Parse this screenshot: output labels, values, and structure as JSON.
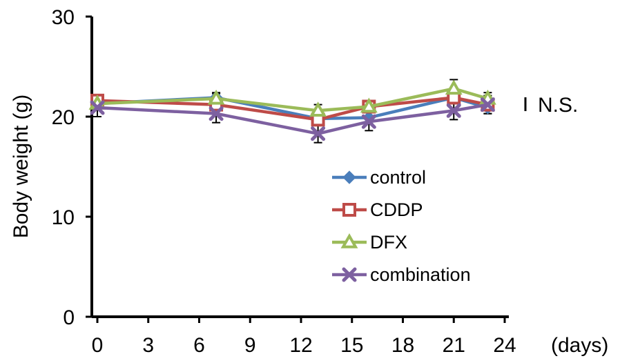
{
  "chart_data": {
    "type": "line",
    "title": "",
    "xlabel": "(days)",
    "ylabel": "Body weight (g)",
    "xlim": [
      0,
      24
    ],
    "ylim": [
      0,
      30
    ],
    "xticks": [
      0,
      3,
      6,
      9,
      12,
      15,
      18,
      21,
      24
    ],
    "yticks": [
      0,
      10,
      20,
      30
    ],
    "grid": false,
    "legend_position": "right-center",
    "annotation": "N.S.",
    "series": [
      {
        "name": "control",
        "color": "#4a7ebb",
        "marker": "diamond",
        "x": [
          0,
          7,
          13,
          16,
          21,
          23
        ],
        "y": [
          21.3,
          21.9,
          19.8,
          19.9,
          21.9,
          20.9
        ],
        "err": [
          0.5,
          0.5,
          0.6,
          0.6,
          0.6,
          0.6
        ]
      },
      {
        "name": "CDDP",
        "color": "#be4b48",
        "marker": "square",
        "x": [
          0,
          7,
          13,
          16,
          21,
          23
        ],
        "y": [
          21.6,
          21.2,
          19.7,
          21.0,
          21.9,
          21.2
        ],
        "err": [
          0.5,
          0.5,
          0.6,
          0.6,
          0.6,
          0.6
        ]
      },
      {
        "name": "DFX",
        "color": "#9bbb59",
        "marker": "triangle",
        "x": [
          0,
          7,
          13,
          16,
          21,
          23
        ],
        "y": [
          21.3,
          21.8,
          20.6,
          21.0,
          22.8,
          21.8
        ],
        "err": [
          0.5,
          0.5,
          0.6,
          0.6,
          0.9,
          0.6
        ]
      },
      {
        "name": "combination",
        "color": "#7d60a0",
        "marker": "x",
        "x": [
          0,
          7,
          13,
          16,
          21,
          23
        ],
        "y": [
          20.9,
          20.3,
          18.3,
          19.5,
          20.6,
          21.2
        ],
        "err": [
          0.9,
          0.9,
          0.9,
          0.9,
          0.9,
          0.9
        ]
      }
    ]
  }
}
